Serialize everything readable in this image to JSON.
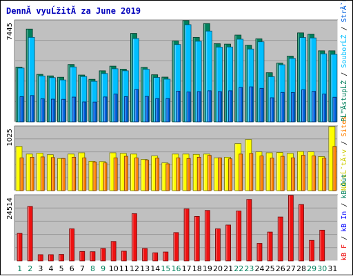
{
  "chart_data": {
    "type": "bar",
    "title": "DennĂ­ vyuĹžitĂ­ za June 2019",
    "x": [
      "1",
      "2",
      "3",
      "4",
      "5",
      "6",
      "7",
      "8",
      "9",
      "10",
      "11",
      "12",
      "13",
      "14",
      "15",
      "16",
      "17",
      "18",
      "19",
      "20",
      "21",
      "22",
      "23",
      "24",
      "25",
      "26",
      "27",
      "28",
      "29",
      "30",
      "31"
    ],
    "weekend_days": [
      1,
      2,
      8,
      9,
      15,
      16,
      22,
      23,
      29,
      30
    ],
    "colors": {
      "weekday_label": "#000000",
      "weekend_label": "#00805c",
      "hits": "#00805c",
      "files": "#00bfff",
      "pages": "#0060df",
      "visits": "#ffff00",
      "sites": "#ff8000",
      "kb": "#ee1111",
      "panel": "#c0c0c0"
    },
    "panels": [
      {
        "id": "requests",
        "ymax_label": "7445",
        "ymax": 7445,
        "legend": [
          {
            "text": "PĹ™Ă­stupĹŻ",
            "color": "#00805c"
          },
          {
            "text": " / ",
            "color": "#000000"
          },
          {
            "text": "SouborĹŻ",
            "color": "#00bfff"
          },
          {
            "text": " / ",
            "color": "#000000"
          },
          {
            "text": "StrĂˇnek",
            "color": "#0060df"
          }
        ],
        "series": [
          {
            "name": "PĹ™Ă­stupĹŻ",
            "role": "back",
            "values": [
              4000,
              6780,
              3470,
              3360,
              3260,
              4190,
              3420,
              3110,
              3730,
              4070,
              3850,
              6460,
              3980,
              3440,
              3270,
              5910,
              7400,
              6170,
              7180,
              5710,
              5680,
              6340,
              5600,
              6070,
              3590,
              4290,
              4800,
              6500,
              6410,
              5190,
              5190
            ]
          },
          {
            "name": "SouborĹŻ",
            "role": "mid",
            "values": [
              3930,
              6170,
              3350,
              3230,
              3060,
              4010,
              3310,
              2960,
              3530,
              3880,
              3730,
              6090,
              3840,
              3240,
              3120,
              5650,
              7100,
              5890,
              6630,
              5460,
              5470,
              6040,
              5320,
              5850,
              3300,
              4170,
              4640,
              6160,
              6130,
              4970,
              4930
            ]
          },
          {
            "name": "StrĂˇnek",
            "role": "front",
            "values": [
              1840,
              1920,
              1680,
              1660,
              1650,
              1810,
              1460,
              1450,
              1820,
              2030,
              1840,
              2370,
              1860,
              1700,
              1700,
              2240,
              2180,
              2210,
              2270,
              2210,
              2270,
              2510,
              2560,
              2450,
              1760,
              2150,
              2140,
              2340,
              2230,
              2030,
              1800
            ]
          }
        ]
      },
      {
        "id": "visits",
        "ymax_label": "1025",
        "ymax": 1025,
        "legend": [
          {
            "text": "NĂˇvĹˇtÄ›v",
            "color": "#cccc00"
          },
          {
            "text": " / ",
            "color": "#000000"
          },
          {
            "text": "Sites",
            "color": "#ff8000"
          }
        ],
        "series": [
          {
            "name": "NĂˇvĹˇtÄ›v",
            "role": "back",
            "values": [
              700,
              580,
              595,
              570,
              510,
              580,
              600,
              465,
              460,
              600,
              590,
              580,
              495,
              550,
              440,
              580,
              580,
              575,
              580,
              520,
              530,
              745,
              810,
              615,
              600,
              605,
              590,
              620,
              615,
              540,
              1015
            ]
          },
          {
            "name": "Sites",
            "role": "front",
            "values": [
              520,
              530,
              535,
              525,
              510,
              530,
              520,
              455,
              440,
              520,
              545,
              520,
              485,
              515,
              425,
              520,
              510,
              530,
              560,
              520,
              505,
              580,
              590,
              550,
              515,
              545,
              520,
              560,
              550,
              515,
              700
            ]
          }
        ]
      },
      {
        "id": "kbytes",
        "ymax_label": "24514",
        "ymax": 24514,
        "legend": [
          {
            "text": "kB F",
            "color": "#ee1111"
          },
          {
            "text": " / ",
            "color": "#000000"
          },
          {
            "text": "kB In",
            "color": "#0000ff"
          },
          {
            "text": " / ",
            "color": "#000000"
          },
          {
            "text": "kB Out",
            "color": "#00805c"
          }
        ],
        "series": [
          {
            "name": "kB F",
            "role": "single",
            "values": [
              10200,
              20200,
              2300,
              2300,
              2400,
              11900,
              3500,
              3400,
              4600,
              7200,
              3600,
              17500,
              4600,
              3000,
              3300,
              10500,
              19300,
              16500,
              18700,
              11900,
              13300,
              18500,
              22800,
              6500,
              10700,
              16300,
              24300,
              20900,
              7600,
              11400,
              0
            ]
          }
        ]
      }
    ]
  }
}
